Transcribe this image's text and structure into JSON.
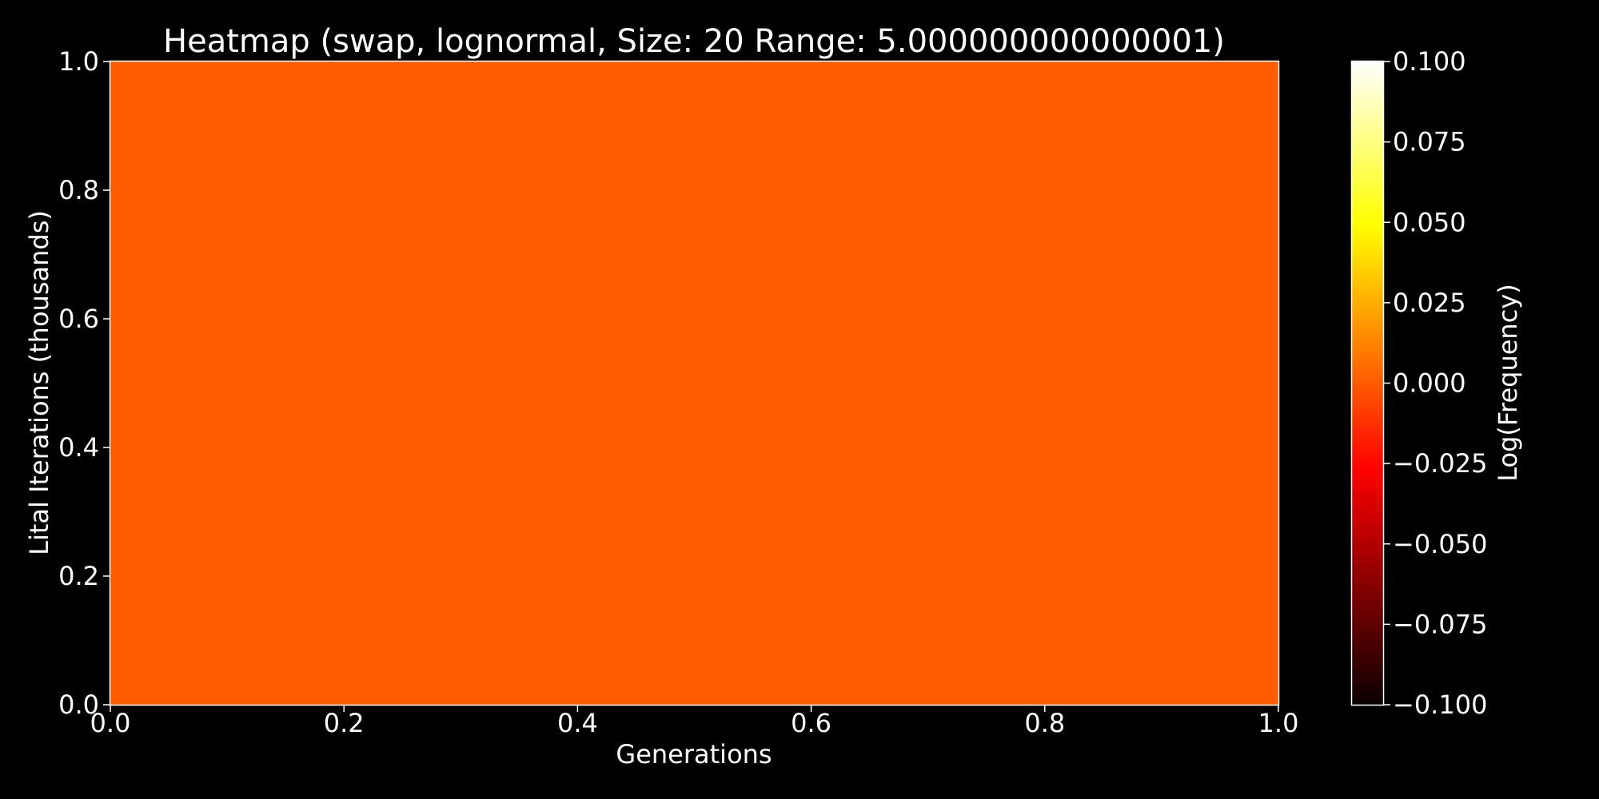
{
  "chart_data": {
    "type": "heatmap",
    "title": "Heatmap (swap, lognormal, Size: 20 Range: 5.000000000000001)",
    "xlabel": "Generations",
    "ylabel": "Lital Iterations (thousands)",
    "xlim": [
      0.0,
      1.0
    ],
    "ylim": [
      0.0,
      1.0
    ],
    "x_ticks": [
      "0.0",
      "0.2",
      "0.4",
      "0.6",
      "0.8",
      "1.0"
    ],
    "y_ticks": [
      "0.0",
      "0.2",
      "0.4",
      "0.6",
      "0.8",
      "1.0"
    ],
    "values": [
      [
        0.0
      ]
    ],
    "grid": false,
    "colormap": "hot",
    "colorbar": {
      "label": "Log(Frequency)",
      "range": [
        -0.1,
        0.1
      ],
      "ticks": [
        -0.1,
        -0.075,
        -0.05,
        -0.025,
        0.0,
        0.025,
        0.05,
        0.075,
        0.1
      ],
      "tick_labels": [
        "−0.100",
        "−0.075",
        "−0.050",
        "−0.025",
        "0.000",
        "0.025",
        "0.050",
        "0.075",
        "0.100"
      ]
    },
    "colors": {
      "background": "#000000",
      "foreground": "#ffffff",
      "cell": "#ff5b00"
    }
  }
}
